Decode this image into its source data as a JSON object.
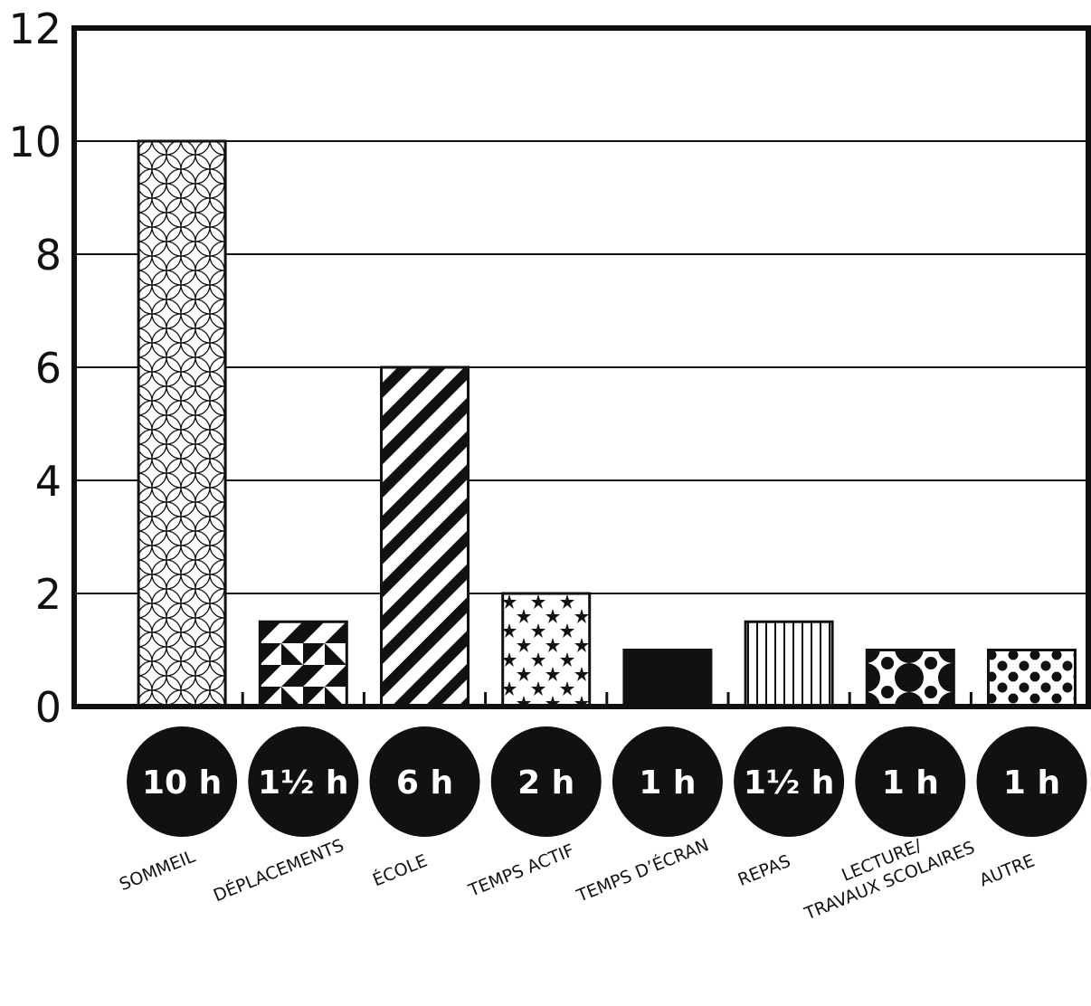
{
  "chart_data": {
    "type": "bar",
    "categories": [
      "SOMMEIL",
      "DÉPLACEMENTS",
      "ÉCOLE",
      "TEMPS ACTIF",
      "TEMPS D’ÉCRAN",
      "REPAS",
      "LECTURE/ TRAVAUX SCOLAIRES",
      "AUTRE"
    ],
    "category_label_lines": [
      [
        "SOMMEIL"
      ],
      [
        "DÉPLACEMENTS"
      ],
      [
        "ÉCOLE"
      ],
      [
        "TEMPS ACTIF"
      ],
      [
        "TEMPS D’ÉCRAN"
      ],
      [
        "REPAS"
      ],
      [
        "LECTURE/",
        "TRAVAUX SCOLAIRES"
      ],
      [
        "AUTRE"
      ]
    ],
    "values": [
      10,
      1.5,
      6,
      2,
      1,
      1.5,
      1,
      1
    ],
    "value_labels": [
      "10 h",
      "1½ h",
      "6 h",
      "2 h",
      "1 h",
      "1½ h",
      "1 h",
      "1 h"
    ],
    "patterns": [
      "circles",
      "triangles",
      "diagonal-stripes",
      "stars",
      "solid",
      "vertical-stripes",
      "quarter-circles",
      "dots"
    ],
    "ylim": [
      0,
      12
    ],
    "yticks": [
      0,
      2,
      4,
      6,
      8,
      10,
      12
    ],
    "grid": true,
    "colors": {
      "ink": "#111111",
      "background": "#ffffff"
    }
  }
}
